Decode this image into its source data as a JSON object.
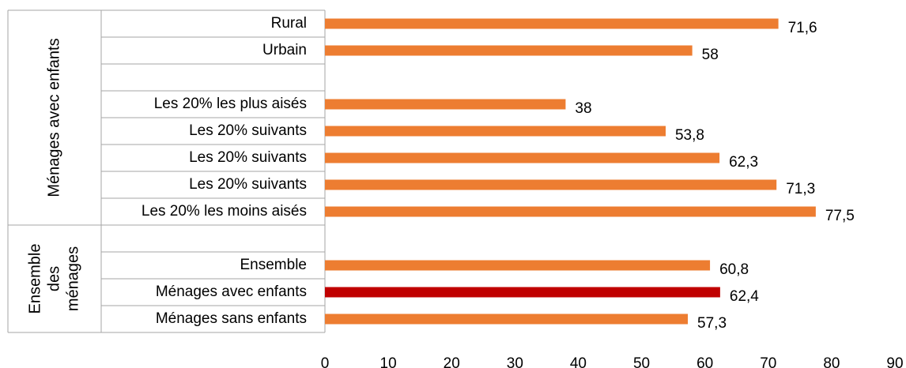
{
  "chart_data": {
    "type": "bar",
    "orientation": "horizontal",
    "groups": [
      {
        "label": "Ménages avec enfants",
        "categories": [
          "Rural",
          "Urbain",
          "",
          "Les 20% les plus aisés",
          "Les 20% suivants",
          "Les 20% suivants",
          "Les 20% suivants",
          "Les 20% les moins aisés"
        ],
        "values": [
          71.6,
          58,
          null,
          38,
          53.8,
          62.3,
          71.3,
          77.5
        ],
        "value_labels": [
          "71,6",
          "58",
          "",
          "38",
          "53,8",
          "62,3",
          "71,3",
          "77,5"
        ]
      },
      {
        "label_lines": [
          "Ensemble",
          "des",
          "ménages"
        ],
        "categories": [
          "",
          "Ensemble",
          "Ménages avec enfants",
          "Ménages sans enfants"
        ],
        "values": [
          null,
          60.8,
          62.4,
          57.3
        ],
        "value_labels": [
          "",
          "60,8",
          "62,4",
          "57,3"
        ]
      }
    ],
    "highlight_category": "Ménages avec enfants",
    "xlim": [
      0,
      90
    ],
    "xticks": [
      0,
      10,
      20,
      30,
      40,
      50,
      60,
      70,
      80,
      90
    ],
    "colors": {
      "bar": "#ED7D31",
      "highlight": "#C00000",
      "grid": "#A6A6A6"
    },
    "grid": false,
    "legend": "none"
  }
}
